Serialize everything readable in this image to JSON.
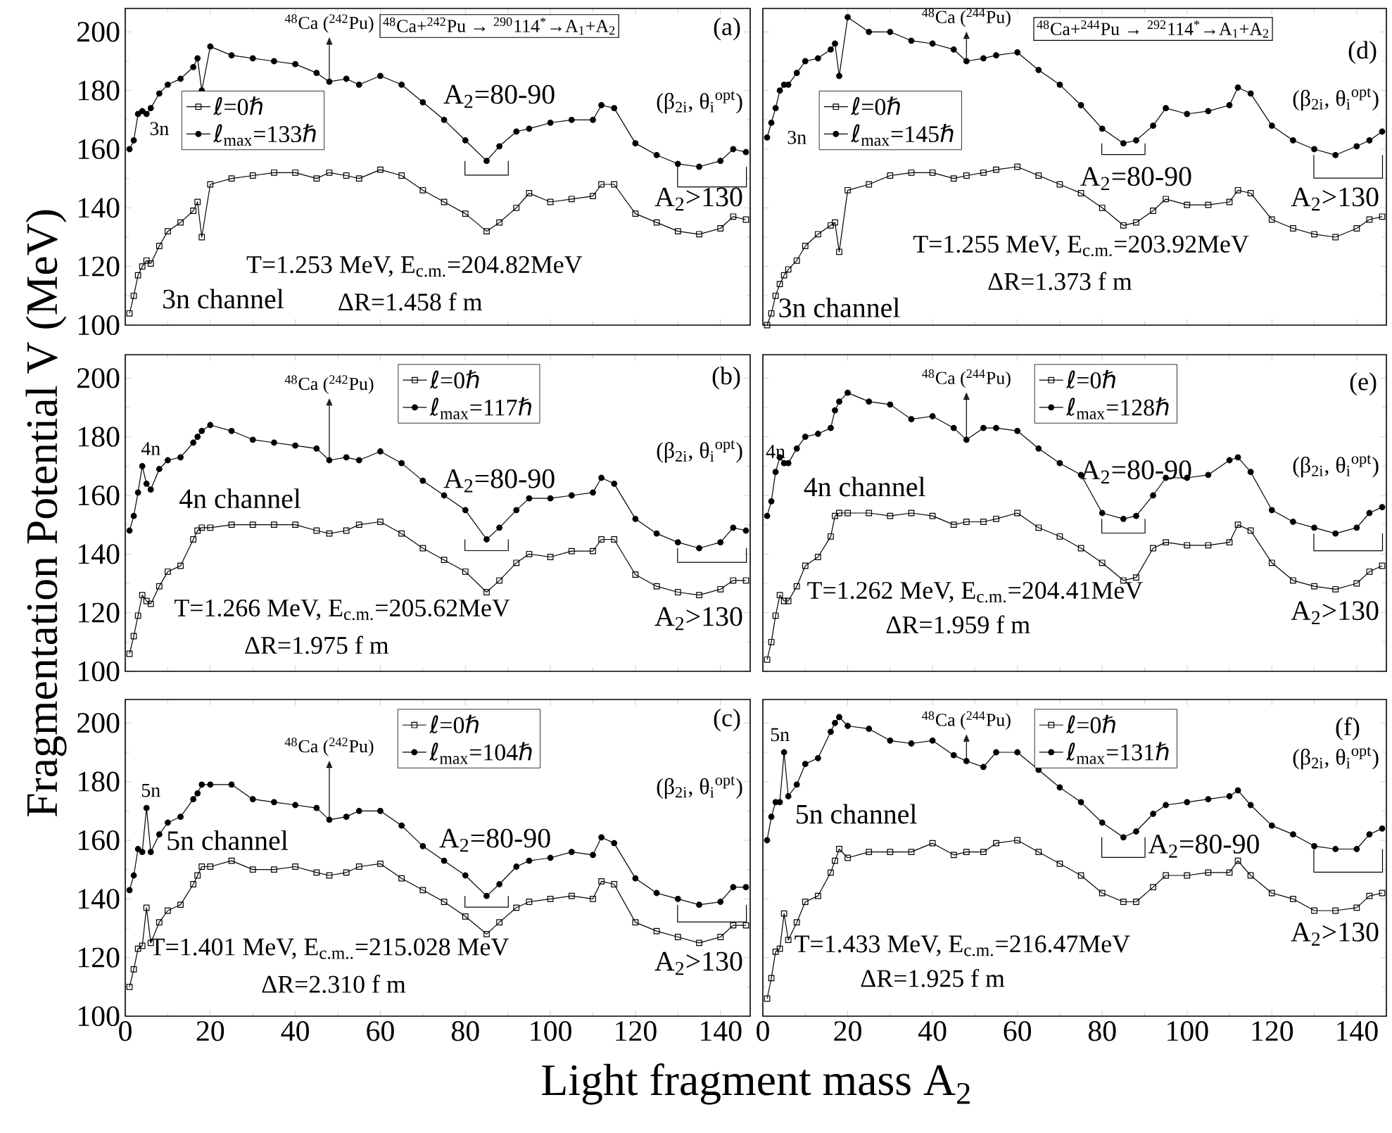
{
  "chart_data": [
    {
      "type": "line",
      "x": [
        1,
        2,
        3,
        4,
        5,
        6,
        8,
        10,
        13,
        16,
        17,
        18,
        20,
        25,
        30,
        35,
        40,
        45,
        48,
        52,
        55,
        60,
        65,
        70,
        75,
        80,
        85,
        88,
        92,
        95,
        100,
        105,
        110,
        112,
        115,
        120,
        125,
        130,
        135,
        140,
        143,
        146
      ],
      "xlim": [
        0,
        147
      ],
      "ylim": [
        100,
        208
      ],
      "xticks": [
        0,
        20,
        40,
        60,
        80,
        100,
        120,
        140
      ],
      "yticks": [
        100,
        120,
        140,
        160,
        180,
        200
      ],
      "tick_labels": "y",
      "legend": "left",
      "series": [
        {
          "name": "ℓ=0ℏ",
          "color": "#000000",
          "marker": "square",
          "values": [
            104,
            110,
            117,
            120,
            122,
            121,
            127,
            132,
            135,
            139,
            142,
            130,
            148,
            150,
            151,
            152,
            152,
            150,
            152,
            151,
            150,
            153,
            151,
            146,
            142,
            138,
            132,
            135,
            140,
            145,
            142,
            143,
            144,
            148,
            148,
            138,
            135,
            132,
            131,
            133,
            137,
            136
          ]
        },
        {
          "name": "ℓ$_{max}$=133ℏ",
          "color": "#000000",
          "marker": "circle",
          "values": [
            160,
            163,
            172,
            173,
            172,
            174,
            179,
            182,
            184,
            188,
            191,
            180,
            195,
            192,
            191,
            190,
            189,
            186,
            183,
            184,
            182,
            185,
            182,
            176,
            170,
            163,
            156,
            161,
            166,
            167,
            169,
            170,
            170,
            175,
            174,
            162,
            158,
            155,
            154,
            156,
            160,
            159
          ]
        }
      ],
      "annotations": [
        "(a)",
        {
          "text": "$^{48}$Ca ($^{242}$Pu)",
          "x": 48,
          "y": 183
        },
        "3n",
        {
          "text": "A$_{2}$=80-90",
          "x": 85,
          "y": 156
        },
        "(β$_{2i}$, θ$_{i}$$^{opt}$)",
        {
          "text": "A$_{2}$>130",
          "x": 135,
          "y": 154
        },
        "T=1.253 MeV, E$_{c.m.}$=204.82MeV",
        "ΔR=1.458 f m",
        "3n channel",
        "$^{48}$Ca+$^{242}$Pu → $^{290}$114$^{*}$→A$_{1}$+A$_{2}$"
      ]
    },
    {
      "type": "line",
      "x": [
        1,
        2,
        3,
        4,
        5,
        6,
        8,
        10,
        13,
        16,
        17,
        18,
        20,
        25,
        30,
        35,
        40,
        45,
        48,
        52,
        55,
        60,
        65,
        70,
        75,
        80,
        85,
        88,
        92,
        95,
        100,
        105,
        110,
        112,
        115,
        120,
        125,
        130,
        135,
        140,
        143,
        146
      ],
      "xlim": [
        0,
        147
      ],
      "ylim": [
        100,
        208
      ],
      "xticks": [
        0,
        20,
        40,
        60,
        80,
        100,
        120,
        140
      ],
      "yticks": [
        100,
        120,
        140,
        160,
        180,
        200
      ],
      "tick_labels": false,
      "legend": "left",
      "series": [
        {
          "name": "ℓ=0ℏ",
          "color": "#000000",
          "marker": "square",
          "values": [
            100,
            104,
            110,
            114,
            117,
            119,
            122,
            127,
            131,
            134,
            135,
            125,
            146,
            148,
            151,
            152,
            152,
            150,
            151,
            152,
            153,
            154,
            151,
            148,
            145,
            140,
            134,
            135,
            139,
            143,
            141,
            141,
            142,
            146,
            145,
            136,
            133,
            131,
            130,
            133,
            136,
            137
          ]
        },
        {
          "name": "ℓ$_{max}$=145ℏ",
          "color": "#000000",
          "marker": "circle",
          "values": [
            164,
            169,
            174,
            180,
            182,
            182,
            186,
            190,
            191,
            194,
            196,
            185,
            205,
            200,
            200,
            197,
            196,
            194,
            190,
            191,
            192,
            193,
            187,
            182,
            175,
            167,
            162,
            163,
            168,
            174,
            172,
            173,
            175,
            181,
            179,
            168,
            163,
            160,
            158,
            161,
            163,
            166
          ]
        }
      ],
      "annotations": [
        "(d)",
        {
          "text": "$^{48}$Ca ($^{244}$Pu)",
          "x": 48,
          "y": 190
        },
        "3n",
        {
          "text": "A$_{2}$=80-90",
          "x": 85,
          "y": 162
        },
        "(β$_{2i}$, θ$_{i}$$^{opt}$)",
        {
          "text": "A$_{2}$>130",
          "x": 135,
          "y": 158
        },
        "T=1.255 MeV, E$_{c.m.}$=203.92MeV",
        "ΔR=1.373 f m",
        "3n channel",
        "$^{48}$Ca+$^{244}$Pu → $^{292}$114$^{*}$→A$_{1}$+A$_{2}$"
      ]
    },
    {
      "type": "line",
      "x": [
        1,
        2,
        3,
        4,
        5,
        6,
        8,
        10,
        13,
        16,
        17,
        18,
        20,
        25,
        30,
        35,
        40,
        45,
        48,
        52,
        55,
        60,
        65,
        70,
        75,
        80,
        85,
        88,
        92,
        95,
        100,
        105,
        110,
        112,
        115,
        120,
        125,
        130,
        135,
        140,
        143,
        146
      ],
      "xlim": [
        0,
        147
      ],
      "ylim": [
        100,
        208
      ],
      "xticks": [
        0,
        20,
        40,
        60,
        80,
        100,
        120,
        140
      ],
      "yticks": [
        100,
        120,
        140,
        160,
        180,
        200
      ],
      "tick_labels": "y",
      "legend": "top",
      "ylabel": "Fragmentation Potential V (MeV)",
      "series": [
        {
          "name": "ℓ=0ℏ",
          "color": "#000000",
          "marker": "square",
          "values": [
            106,
            112,
            119,
            126,
            124,
            123,
            129,
            134,
            136,
            145,
            148,
            149,
            149,
            150,
            150,
            150,
            150,
            148,
            147,
            148,
            150,
            151,
            147,
            142,
            138,
            134,
            127,
            131,
            137,
            140,
            139,
            141,
            141,
            145,
            145,
            133,
            129,
            127,
            126,
            128,
            131,
            131
          ]
        },
        {
          "name": "ℓ$_{max}$=117ℏ",
          "color": "#000000",
          "marker": "circle",
          "values": [
            148,
            153,
            161,
            170,
            164,
            162,
            169,
            172,
            173,
            178,
            180,
            182,
            184,
            182,
            179,
            178,
            177,
            176,
            172,
            173,
            172,
            175,
            171,
            165,
            160,
            155,
            145,
            149,
            155,
            159,
            159,
            160,
            161,
            166,
            164,
            152,
            147,
            144,
            142,
            144,
            149,
            148
          ]
        }
      ],
      "annotations": [
        "(b)",
        {
          "text": "$^{48}$Ca ($^{242}$Pu)",
          "x": 48,
          "y": 172
        },
        "4n",
        {
          "text": "A$_{2}$=80-90",
          "x": 85,
          "y": 145
        },
        "(β$_{2i}$, θ$_{i}$$^{opt}$)",
        {
          "text": "A$_{2}$>130",
          "x": 135,
          "y": 142
        },
        "T=1.266 MeV, E$_{c.m.}$=205.62MeV",
        "ΔR=1.975 f m",
        "4n channel"
      ]
    },
    {
      "type": "line",
      "x": [
        1,
        2,
        3,
        4,
        5,
        6,
        8,
        10,
        13,
        16,
        17,
        18,
        20,
        25,
        30,
        35,
        40,
        45,
        48,
        52,
        55,
        60,
        65,
        70,
        75,
        80,
        85,
        88,
        92,
        95,
        100,
        105,
        110,
        112,
        115,
        120,
        125,
        130,
        135,
        140,
        143,
        146
      ],
      "xlim": [
        0,
        147
      ],
      "ylim": [
        100,
        208
      ],
      "xticks": [
        0,
        20,
        40,
        60,
        80,
        100,
        120,
        140
      ],
      "yticks": [
        100,
        120,
        140,
        160,
        180,
        200
      ],
      "tick_labels": false,
      "legend": "top",
      "series": [
        {
          "name": "ℓ=0ℏ",
          "color": "#000000",
          "marker": "square",
          "values": [
            104,
            110,
            119,
            126,
            124,
            124,
            129,
            136,
            139,
            146,
            153,
            154,
            154,
            154,
            153,
            154,
            153,
            150,
            151,
            151,
            152,
            154,
            149,
            146,
            142,
            137,
            131,
            132,
            142,
            144,
            143,
            143,
            144,
            150,
            148,
            137,
            131,
            129,
            128,
            130,
            134,
            136
          ]
        },
        {
          "name": "ℓ$_{max}$=128ℏ",
          "color": "#000000",
          "marker": "circle",
          "values": [
            153,
            158,
            168,
            173,
            171,
            171,
            176,
            180,
            181,
            183,
            189,
            192,
            195,
            192,
            191,
            186,
            187,
            183,
            179,
            183,
            183,
            182,
            176,
            171,
            167,
            154,
            152,
            153,
            160,
            166,
            166,
            167,
            172,
            173,
            168,
            155,
            151,
            149,
            147,
            149,
            154,
            156
          ]
        }
      ],
      "annotations": [
        "(e)",
        {
          "text": "$^{48}$Ca ($^{244}$Pu)",
          "x": 48,
          "y": 178
        },
        "4n",
        {
          "text": "A$_{2}$=80-90",
          "x": 85,
          "y": 152
        },
        "(β$_{2i}$, θ$_{i}$$^{opt}$)",
        {
          "text": "A$_{2}$>130",
          "x": 135,
          "y": 147
        },
        "T=1.262 MeV, E$_{c.m.}$=204.41MeV",
        "ΔR=1.959 f m",
        "4n channel"
      ]
    },
    {
      "type": "line",
      "x": [
        1,
        2,
        3,
        4,
        5,
        6,
        8,
        10,
        13,
        16,
        17,
        18,
        20,
        25,
        30,
        35,
        40,
        45,
        48,
        52,
        55,
        60,
        65,
        70,
        75,
        80,
        85,
        88,
        92,
        95,
        100,
        105,
        110,
        112,
        115,
        120,
        125,
        130,
        135,
        140,
        143,
        146
      ],
      "xlim": [
        0,
        147
      ],
      "ylim": [
        100,
        208
      ],
      "xticks": [
        0,
        20,
        40,
        60,
        80,
        100,
        120,
        140
      ],
      "yticks": [
        100,
        120,
        140,
        160,
        180,
        200
      ],
      "legend": "top",
      "xlabel": "Light fragment mass A$_{2}$",
      "series": [
        {
          "name": "ℓ=0ℏ",
          "color": "#000000",
          "marker": "square",
          "values": [
            110,
            116,
            123,
            124,
            137,
            125,
            132,
            136,
            138,
            145,
            148,
            151,
            151,
            153,
            150,
            150,
            151,
            149,
            148,
            149,
            151,
            152,
            147,
            143,
            139,
            134,
            128,
            132,
            137,
            139,
            140,
            141,
            140,
            146,
            145,
            132,
            129,
            127,
            125,
            127,
            131,
            131
          ]
        },
        {
          "name": "ℓ$_{max}$=104ℏ",
          "color": "#000000",
          "marker": "circle",
          "values": [
            143,
            148,
            157,
            156,
            171,
            156,
            162,
            166,
            168,
            174,
            176,
            179,
            179,
            179,
            174,
            173,
            172,
            171,
            167,
            168,
            170,
            170,
            165,
            158,
            153,
            148,
            141,
            145,
            151,
            153,
            154,
            156,
            155,
            161,
            159,
            147,
            142,
            140,
            138,
            139,
            144,
            144
          ]
        }
      ],
      "annotations": [
        "(c)",
        {
          "text": "$^{48}$Ca ($^{242}$Pu)",
          "x": 48,
          "y": 167
        },
        "5n",
        {
          "text": "A$_{2}$=80-90",
          "x": 85,
          "y": 141
        },
        "(β$_{2i}$, θ$_{i}$$^{opt}$)",
        {
          "text": "A$_{2}$>130",
          "x": 135,
          "y": 138
        },
        "T=1.401 MeV, E$_{c.m..}$=215.028 MeV",
        "ΔR=2.310 f m",
        "5n channel"
      ]
    },
    {
      "type": "line",
      "x": [
        1,
        2,
        3,
        4,
        5,
        6,
        8,
        10,
        13,
        16,
        17,
        18,
        20,
        25,
        30,
        35,
        40,
        45,
        48,
        52,
        55,
        60,
        65,
        70,
        75,
        80,
        85,
        88,
        92,
        95,
        100,
        105,
        110,
        112,
        115,
        120,
        125,
        130,
        135,
        140,
        143,
        146
      ],
      "xlim": [
        0,
        147
      ],
      "ylim": [
        100,
        208
      ],
      "xticks": [
        0,
        20,
        40,
        60,
        80,
        100,
        120,
        140
      ],
      "yticks": [
        100,
        120,
        140,
        160,
        180,
        200
      ],
      "tick_labels": "x",
      "legend": "top",
      "series": [
        {
          "name": "ℓ=0ℏ",
          "color": "#000000",
          "marker": "square",
          "values": [
            106,
            113,
            122,
            123,
            135,
            126,
            132,
            139,
            141,
            149,
            153,
            157,
            154,
            156,
            156,
            156,
            159,
            155,
            156,
            156,
            159,
            160,
            156,
            152,
            148,
            142,
            139,
            139,
            144,
            148,
            148,
            149,
            149,
            153,
            148,
            142,
            140,
            136,
            136,
            137,
            141,
            142
          ]
        },
        {
          "name": "ℓ$_{max}$=131ℏ",
          "color": "#000000",
          "marker": "circle",
          "values": [
            160,
            168,
            173,
            173,
            190,
            175,
            179,
            186,
            188,
            197,
            200,
            202,
            199,
            198,
            194,
            193,
            194,
            189,
            187,
            185,
            190,
            190,
            184,
            178,
            173,
            166,
            161,
            163,
            169,
            172,
            173,
            174,
            175,
            177,
            172,
            165,
            162,
            158,
            157,
            157,
            162,
            164
          ]
        }
      ],
      "annotations": [
        "(f)",
        {
          "text": "$^{48}$Ca ($^{244}$Pu)",
          "x": 48,
          "y": 187
        },
        "5n",
        {
          "text": "A$_{2}$=80-90",
          "x": 85,
          "y": 161
        },
        "(β$_{2i}$, θ$_{i}$$^{opt}$)",
        {
          "text": "A$_{2}$>130",
          "x": 135,
          "y": 157
        },
        "T=1.433 MeV, E$_{c.m.}$=216.47MeV",
        "ΔR=1.925 f m",
        "5n channel"
      ]
    }
  ]
}
